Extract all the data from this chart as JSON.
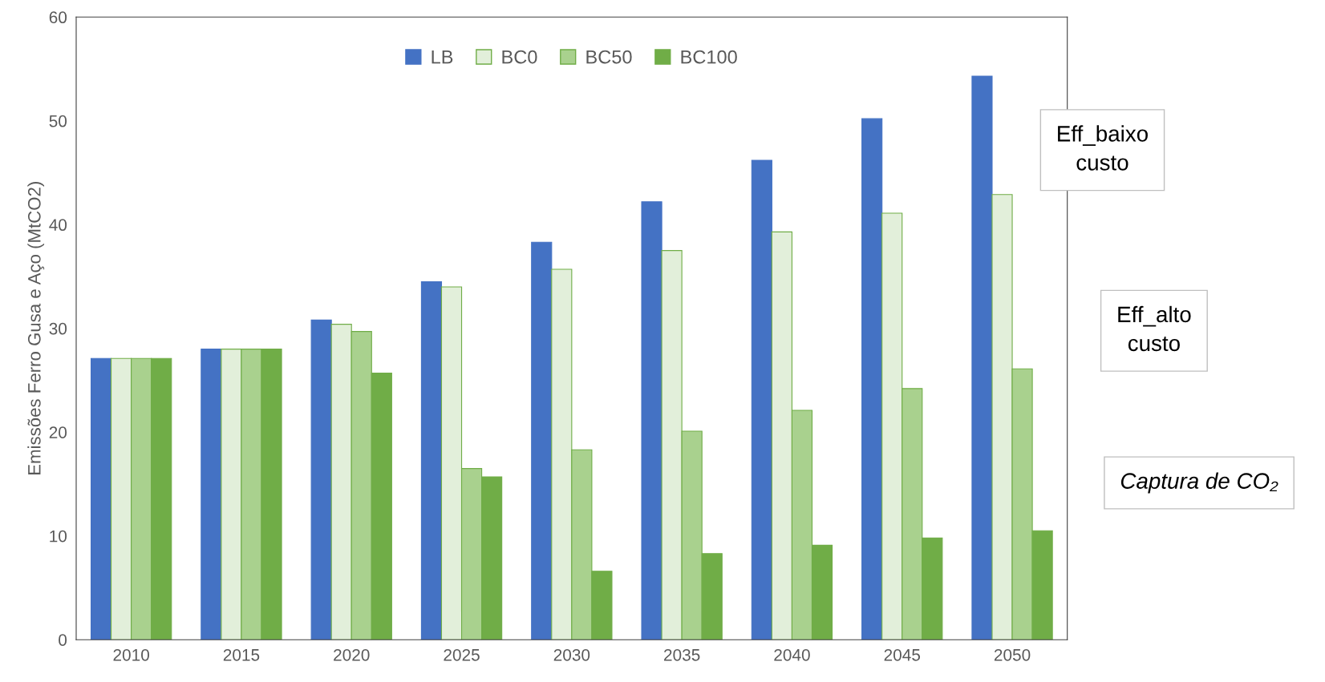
{
  "chart_data": {
    "type": "bar",
    "ylabel": "Emissões Ferro Gusa e Aço (MtCO2)",
    "categories": [
      "2010",
      "2015",
      "2020",
      "2025",
      "2030",
      "2035",
      "2040",
      "2045",
      "2050"
    ],
    "series": [
      {
        "name": "LB",
        "color": "#4472c4",
        "values": [
          27.1,
          28.0,
          30.8,
          34.5,
          38.3,
          42.2,
          46.2,
          50.2,
          54.3
        ]
      },
      {
        "name": "BC0",
        "color": "#e2efda",
        "values": [
          27.1,
          28.0,
          30.4,
          34.0,
          35.7,
          37.5,
          39.3,
          41.1,
          42.9
        ]
      },
      {
        "name": "BC50",
        "color": "#a9d18e",
        "values": [
          27.1,
          28.0,
          29.7,
          16.5,
          18.3,
          20.1,
          22.1,
          24.2,
          26.1
        ]
      },
      {
        "name": "BC100",
        "color": "#70ad47",
        "values": [
          27.1,
          28.0,
          25.7,
          15.7,
          6.6,
          8.3,
          9.1,
          9.8,
          10.5
        ]
      }
    ],
    "ylim": [
      0,
      60
    ],
    "yticks": [
      0,
      10,
      20,
      30,
      40,
      50,
      60
    ],
    "grid": false,
    "legend": "top",
    "annotations": [
      "Eff_baixo\ncusto",
      "Eff_alto\ncusto",
      "Captura de CO₂"
    ]
  }
}
